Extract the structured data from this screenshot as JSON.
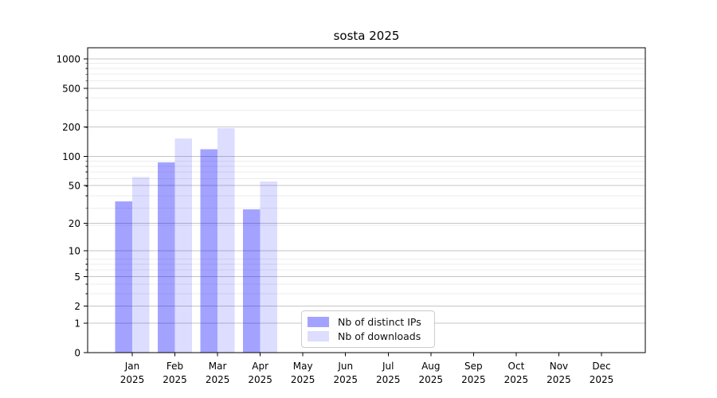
{
  "title": "sosta 2025",
  "colors": {
    "bar_blue": "0,0,255",
    "ips_alpha": 0.36,
    "downloads_alpha": 0.135,
    "grid_major": "#c6c6c6",
    "grid_minor": "#ececec",
    "axis": "#000000",
    "legend_border": "#cccccc"
  },
  "legend": {
    "items": [
      {
        "id": "ips",
        "label": "Nb of distinct IPs"
      },
      {
        "id": "downloads",
        "label": "Nb of downloads"
      }
    ]
  },
  "chart_data": {
    "type": "bar",
    "title": "sosta 2025",
    "categories": [
      "Jan 2025",
      "Feb 2025",
      "Mar 2025",
      "Apr 2025",
      "May 2025",
      "Jun 2025",
      "Jul 2025",
      "Aug 2025",
      "Sep 2025",
      "Oct 2025",
      "Nov 2025",
      "Dec 2025"
    ],
    "series": [
      {
        "name": "Nb of distinct IPs",
        "values": [
          34,
          87,
          119,
          28,
          0,
          0,
          0,
          0,
          0,
          0,
          0,
          0
        ]
      },
      {
        "name": "Nb of downloads",
        "values": [
          61,
          153,
          196,
          55,
          0,
          0,
          0,
          0,
          0,
          0,
          0,
          0
        ]
      }
    ],
    "yscale": "log1p",
    "y_ticks": [
      0,
      1,
      2,
      5,
      10,
      20,
      50,
      100,
      200,
      500,
      1000
    ],
    "ylim": [
      0,
      1300
    ],
    "grid": true,
    "legend_position": "lower center"
  }
}
